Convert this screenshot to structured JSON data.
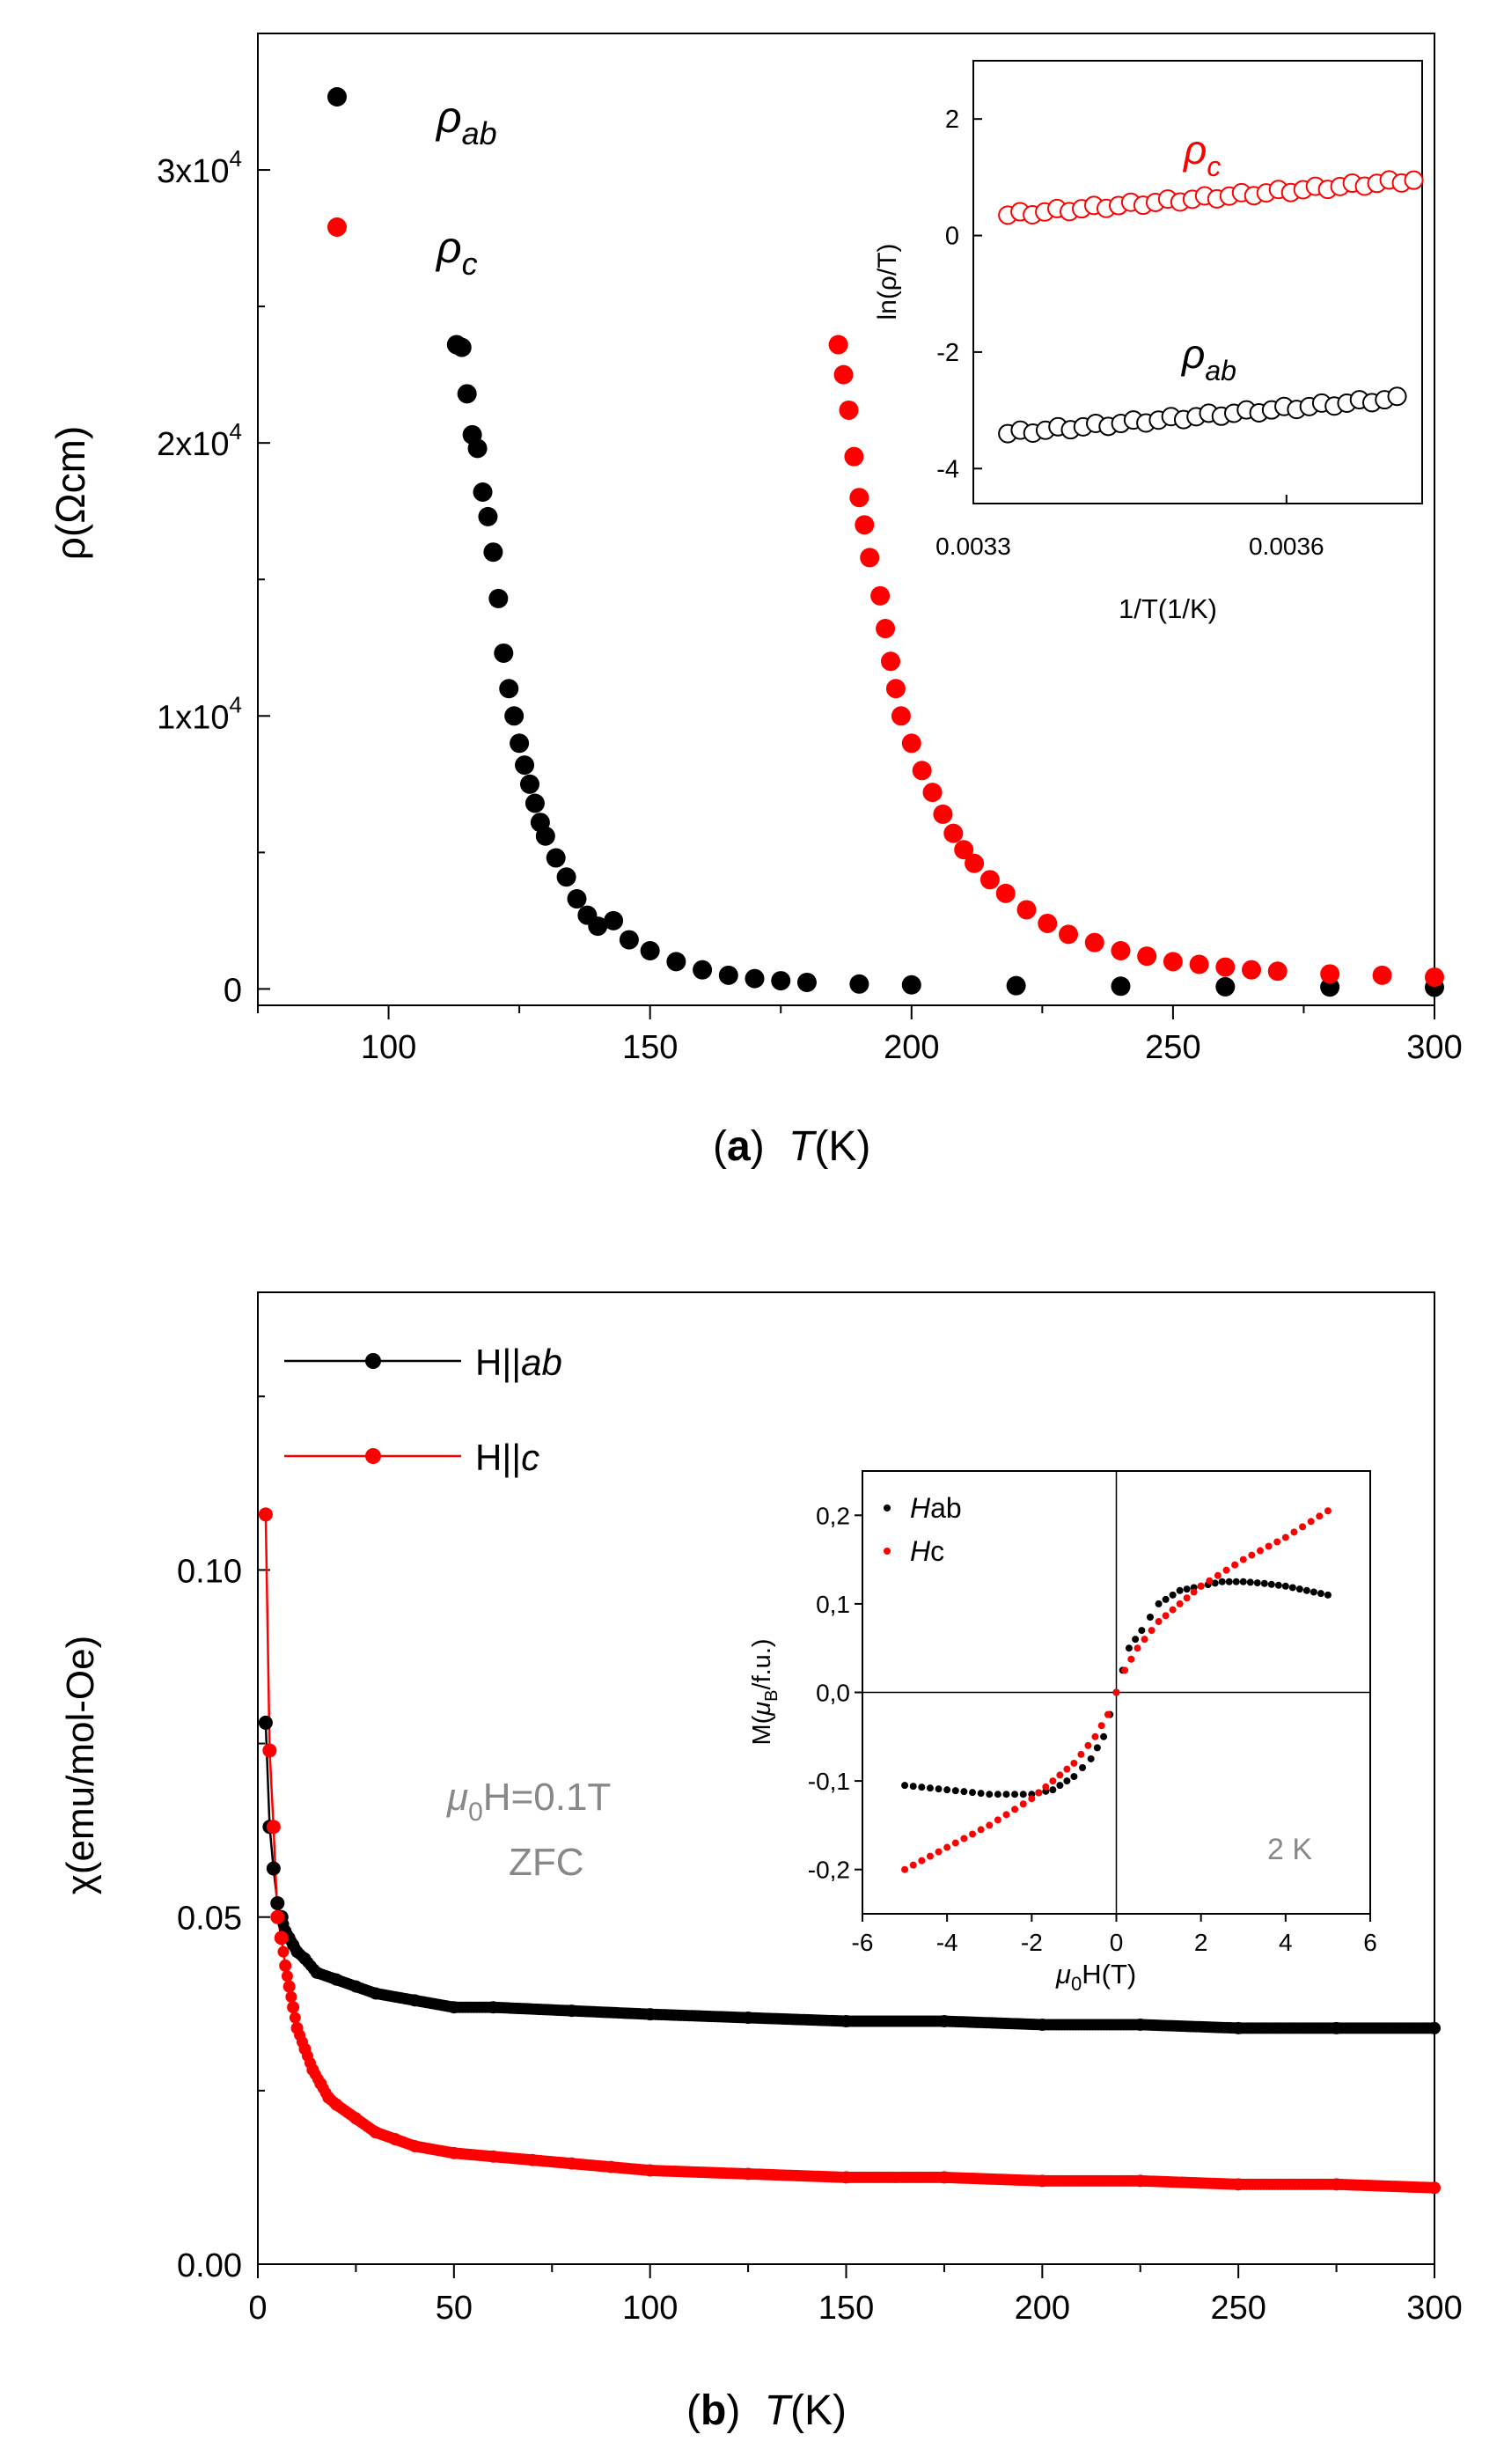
{
  "colors": {
    "black": "#000000",
    "red": "#ff0000",
    "gray": "#888888"
  },
  "chart_data": [
    {
      "id": "a",
      "type": "scatter",
      "panel_label": "a",
      "xlabel": "T",
      "xunit": "(K)",
      "ylabel": "ρ(Ωcm)",
      "xlim": [
        75,
        300
      ],
      "ylim": [
        -600,
        35000
      ],
      "xticks": [
        100,
        150,
        200,
        250,
        300
      ],
      "yticks": [
        {
          "value": 0,
          "label": "0"
        },
        {
          "value": 10000,
          "mant": "1x10",
          "exp": "4"
        },
        {
          "value": 20000,
          "mant": "2x10",
          "exp": "4"
        },
        {
          "value": 30000,
          "mant": "3x10",
          "exp": "4"
        }
      ],
      "legend": [
        {
          "name": "ρ",
          "sub": "ab",
          "color": "#000000"
        },
        {
          "name": "ρ",
          "sub": "c",
          "color": "#ff0000"
        }
      ],
      "series": [
        {
          "name": "ρab",
          "color": "#000000",
          "points": [
            [
              113,
              23600
            ],
            [
              114,
              23500
            ],
            [
              115,
              21800
            ],
            [
              116,
              20300
            ],
            [
              117,
              19800
            ],
            [
              118,
              18200
            ],
            [
              119,
              17300
            ],
            [
              120,
              16000
            ],
            [
              121,
              14300
            ],
            [
              122,
              12300
            ],
            [
              123,
              11000
            ],
            [
              124,
              10000
            ],
            [
              125,
              9000
            ],
            [
              126,
              8200
            ],
            [
              127,
              7500
            ],
            [
              128,
              6800
            ],
            [
              129,
              6100
            ],
            [
              130,
              5600
            ],
            [
              132,
              4800
            ],
            [
              134,
              4100
            ],
            [
              136,
              3300
            ],
            [
              138,
              2700
            ],
            [
              140,
              2300
            ],
            [
              143,
              2500
            ],
            [
              146,
              1800
            ],
            [
              150,
              1400
            ],
            [
              155,
              1000
            ],
            [
              160,
              700
            ],
            [
              165,
              500
            ],
            [
              170,
              380
            ],
            [
              175,
              300
            ],
            [
              180,
              240
            ],
            [
              190,
              180
            ],
            [
              200,
              150
            ],
            [
              220,
              120
            ],
            [
              240,
              100
            ],
            [
              260,
              80
            ],
            [
              280,
              70
            ],
            [
              300,
              60
            ]
          ]
        },
        {
          "name": "ρc",
          "color": "#ff0000",
          "points": [
            [
              186,
              23600
            ],
            [
              187,
              22500
            ],
            [
              188,
              21200
            ],
            [
              189,
              19500
            ],
            [
              190,
              18000
            ],
            [
              191,
              17000
            ],
            [
              192,
              15800
            ],
            [
              194,
              14400
            ],
            [
              195,
              13200
            ],
            [
              196,
              12000
            ],
            [
              197,
              11000
            ],
            [
              198,
              10000
            ],
            [
              200,
              9000
            ],
            [
              202,
              8000
            ],
            [
              204,
              7200
            ],
            [
              206,
              6400
            ],
            [
              208,
              5700
            ],
            [
              210,
              5100
            ],
            [
              212,
              4600
            ],
            [
              215,
              4000
            ],
            [
              218,
              3500
            ],
            [
              222,
              2900
            ],
            [
              226,
              2400
            ],
            [
              230,
              2000
            ],
            [
              235,
              1700
            ],
            [
              240,
              1400
            ],
            [
              245,
              1200
            ],
            [
              250,
              1000
            ],
            [
              255,
              900
            ],
            [
              260,
              800
            ],
            [
              265,
              700
            ],
            [
              270,
              650
            ],
            [
              280,
              550
            ],
            [
              290,
              500
            ],
            [
              300,
              430
            ]
          ]
        }
      ],
      "inset": {
        "xlabel": "1/T(1/K)",
        "ylabel": "ln(ρ/T)",
        "xlim": [
          0.0033,
          0.00373
        ],
        "ylim": [
          -4.6,
          3.0
        ],
        "xticks": [
          {
            "value": 0.0033,
            "label": "0.0033"
          },
          {
            "value": 0.0036,
            "label": "0.0036"
          }
        ],
        "yticks": [
          2,
          0,
          -2,
          -4
        ],
        "series_labels": [
          {
            "name": "ρ",
            "sub": "c",
            "color": "#ff0000"
          },
          {
            "name": "ρ",
            "sub": "ab",
            "color": "#000000"
          }
        ],
        "series": [
          {
            "name": "ρc",
            "color": "#ff0000",
            "x_start": 0.003333,
            "x_end": 0.003722,
            "y_start": 0.35,
            "y_end": 0.95,
            "n": 34
          },
          {
            "name": "ρab",
            "color": "#000000",
            "x_start": 0.003333,
            "x_end": 0.003706,
            "y_start": -3.4,
            "y_end": -2.8,
            "n": 32
          }
        ]
      }
    },
    {
      "id": "b",
      "type": "line",
      "panel_label": "b",
      "xlabel": "T",
      "xunit": "(K)",
      "ylabel": "χ(emu/mol-Oe)",
      "xlim": [
        0,
        300
      ],
      "ylim": [
        0,
        0.14
      ],
      "xticks": [
        0,
        50,
        100,
        150,
        200,
        250,
        300
      ],
      "yticks": [
        {
          "value": 0.0,
          "label": "0.00"
        },
        {
          "value": 0.05,
          "label": "0.05"
        },
        {
          "value": 0.1,
          "label": "0.10"
        }
      ],
      "legend": [
        {
          "name": "H||",
          "sub": "ab",
          "color": "#000000"
        },
        {
          "name": "H||",
          "sub": "c",
          "color": "#ff0000"
        }
      ],
      "annotation": {
        "line1_mu": "μ",
        "line1_sub": "0",
        "line1_rest": "H=0.1T",
        "line2": "ZFC"
      },
      "series": [
        {
          "name": "H||ab",
          "color": "#000000",
          "points": [
            [
              2,
              0.078
            ],
            [
              3,
              0.063
            ],
            [
              4,
              0.057
            ],
            [
              5,
              0.052
            ],
            [
              6,
              0.05
            ],
            [
              7,
              0.048
            ],
            [
              8,
              0.047
            ],
            [
              9,
              0.046
            ],
            [
              10,
              0.045
            ],
            [
              12,
              0.044
            ],
            [
              15,
              0.042
            ],
            [
              20,
              0.041
            ],
            [
              25,
              0.04
            ],
            [
              30,
              0.039
            ],
            [
              40,
              0.038
            ],
            [
              50,
              0.037
            ],
            [
              60,
              0.037
            ],
            [
              80,
              0.0365
            ],
            [
              100,
              0.036
            ],
            [
              125,
              0.0355
            ],
            [
              150,
              0.035
            ],
            [
              175,
              0.035
            ],
            [
              200,
              0.0345
            ],
            [
              225,
              0.0345
            ],
            [
              250,
              0.034
            ],
            [
              275,
              0.034
            ],
            [
              300,
              0.034
            ]
          ]
        },
        {
          "name": "H||c",
          "color": "#ff0000",
          "points": [
            [
              2,
              0.108
            ],
            [
              3,
              0.074
            ],
            [
              4,
              0.063
            ],
            [
              5,
              0.05
            ],
            [
              6,
              0.047
            ],
            [
              7,
              0.043
            ],
            [
              8,
              0.04
            ],
            [
              9,
              0.037
            ],
            [
              10,
              0.034
            ],
            [
              12,
              0.031
            ],
            [
              14,
              0.028
            ],
            [
              16,
              0.026
            ],
            [
              18,
              0.024
            ],
            [
              20,
              0.023
            ],
            [
              25,
              0.021
            ],
            [
              30,
              0.019
            ],
            [
              35,
              0.018
            ],
            [
              40,
              0.017
            ],
            [
              50,
              0.016
            ],
            [
              60,
              0.0155
            ],
            [
              70,
              0.015
            ],
            [
              80,
              0.0145
            ],
            [
              90,
              0.014
            ],
            [
              100,
              0.0135
            ],
            [
              125,
              0.013
            ],
            [
              150,
              0.0125
            ],
            [
              175,
              0.0125
            ],
            [
              200,
              0.012
            ],
            [
              225,
              0.012
            ],
            [
              250,
              0.0115
            ],
            [
              275,
              0.0115
            ],
            [
              300,
              0.011
            ]
          ]
        }
      ],
      "inset": {
        "xlabel_mu": "μ",
        "xlabel_sub": "0",
        "xlabel_rest": "H(T)",
        "ylabel_pre": "M(",
        "ylabel_mu": "μ",
        "ylabel_sub": "B",
        "ylabel_post": "/f.u.)",
        "xlim": [
          -6,
          6
        ],
        "ylim": [
          -0.25,
          0.25
        ],
        "xticks": [
          -6,
          -4,
          -2,
          0,
          2,
          4,
          6
        ],
        "yticks": [
          {
            "value": 0.2,
            "label": "0,2"
          },
          {
            "value": 0.1,
            "label": "0,1"
          },
          {
            "value": 0.0,
            "label": "0,0"
          },
          {
            "value": -0.1,
            "label": "-0,1"
          },
          {
            "value": -0.2,
            "label": "-0,2"
          }
        ],
        "legend": [
          {
            "italic": "H",
            "rest": "ab",
            "color": "#000000"
          },
          {
            "italic": "H",
            "rest": "c",
            "color": "#ff0000"
          }
        ],
        "temp_label": "2 K",
        "series": [
          {
            "name": "Hab",
            "color": "#000000",
            "points": [
              [
                -5,
                -0.105
              ],
              [
                -4,
                -0.11
              ],
              [
                -3,
                -0.115
              ],
              [
                -2,
                -0.115
              ],
              [
                -1.5,
                -0.11
              ],
              [
                -1,
                -0.095
              ],
              [
                -0.6,
                -0.075
              ],
              [
                -0.3,
                -0.05
              ],
              [
                0,
                0
              ],
              [
                0.3,
                0.05
              ],
              [
                0.6,
                0.07
              ],
              [
                1,
                0.1
              ],
              [
                1.5,
                0.115
              ],
              [
                2,
                0.12
              ],
              [
                2.5,
                0.125
              ],
              [
                3,
                0.125
              ],
              [
                3.5,
                0.123
              ],
              [
                4,
                0.12
              ],
              [
                4.5,
                0.115
              ],
              [
                5,
                0.11
              ]
            ]
          },
          {
            "name": "Hc",
            "color": "#ff0000",
            "points": [
              [
                -5,
                -0.2
              ],
              [
                -4,
                -0.175
              ],
              [
                -3,
                -0.15
              ],
              [
                -2,
                -0.12
              ],
              [
                -1.5,
                -0.1
              ],
              [
                -1,
                -0.08
              ],
              [
                -0.5,
                -0.05
              ],
              [
                -0.2,
                -0.025
              ],
              [
                0,
                0
              ],
              [
                0.2,
                0.025
              ],
              [
                0.5,
                0.05
              ],
              [
                1,
                0.08
              ],
              [
                1.5,
                0.1
              ],
              [
                2,
                0.12
              ],
              [
                3,
                0.15
              ],
              [
                4,
                0.175
              ],
              [
                5,
                0.205
              ]
            ]
          }
        ]
      }
    }
  ]
}
